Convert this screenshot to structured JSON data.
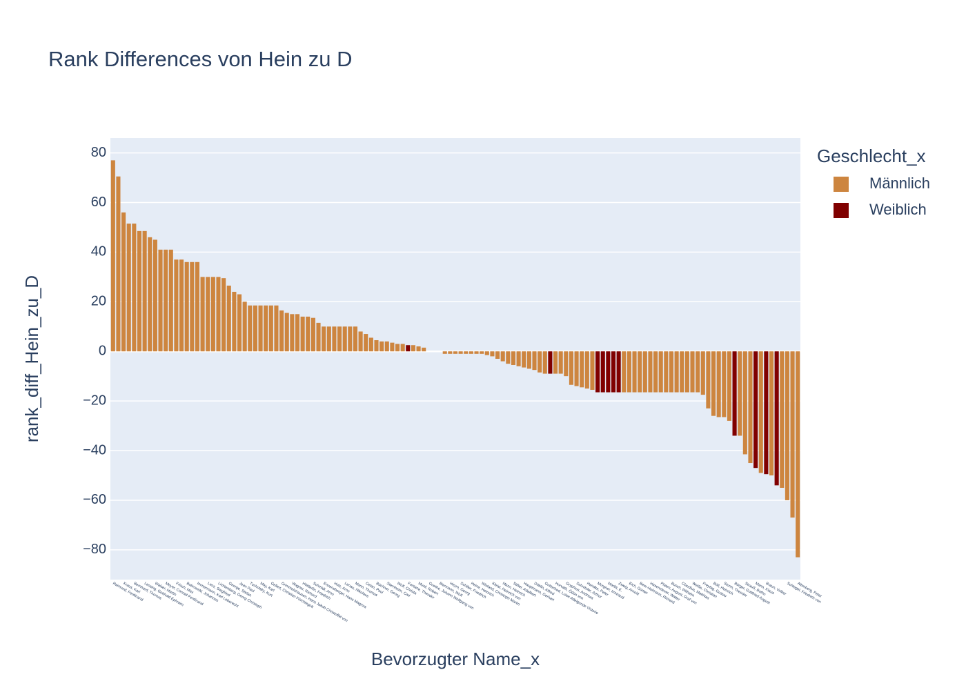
{
  "chart_data": {
    "type": "bar",
    "title": "Rank Differences von Hein zu D",
    "x_label": "Bevorzugter Name_x",
    "y_label": "rank_diff_Hein_zu_D",
    "legend_title": "Geschlecht_x",
    "legend_position": "right",
    "grid": true,
    "ylim": [
      -92,
      86
    ],
    "yticks": [
      {
        "value": -80,
        "label": "−80"
      },
      {
        "value": -60,
        "label": "−60"
      },
      {
        "value": -40,
        "label": "−40"
      },
      {
        "value": -20,
        "label": "−20"
      },
      0,
      20,
      40,
      60,
      80
    ],
    "categories": [
      "Raimund, Ferdinand",
      null,
      "Kraus, Karl",
      null,
      "Bernhard, Thomas",
      null,
      "Lessing, Gotthold Ephraim",
      null,
      "Walser, Martin",
      null,
      "Meyer, Conrad Ferdinand",
      null,
      "Frisch, Max",
      null,
      "Bobrowski, Johannes",
      null,
      "Immermann, Karl Leberecht",
      null,
      "Lenz, Siegfried",
      null,
      "Lichtenberg, Georg Christoph",
      null,
      "George, Stefan",
      null,
      "Jean Paul",
      null,
      "Tucholsky, Kurt",
      null,
      "May, Karl",
      null,
      "Gellert, Christian Fürchtegott",
      null,
      "Grimmelshausen, Hans Jakob Christoffel von",
      null,
      "Wagner, Richard",
      null,
      "Hölderlin, Friedrich",
      null,
      "Schmidt, Arno",
      null,
      "Enzensberger, Hans Magnus",
      null,
      "Holz, Arno",
      null,
      "Lenau, Nikolaus",
      null,
      "Mann, Thomas",
      null,
      "Celan, Paul",
      null,
      "Büchner, Georg",
      null,
      "Sternheim, Carl",
      null,
      "Wolf, Christa",
      null,
      "Fontane, Theodor",
      null,
      "Musil, Robert",
      null,
      "Goethe, Johann Wolfgang von",
      null,
      "Biermann, Wolf",
      null,
      "Heym, Georg",
      null,
      "Schiller, Friedrich",
      null,
      "Heine, Heinrich",
      null,
      "Wieland, Christoph Martin",
      null,
      "Kleist, Heinrich von",
      null,
      "Mann, Heinrich",
      null,
      "Stifter, Adalbert",
      null,
      "Hauptmann, Gerhart",
      null,
      "Döblin, Alfred",
      null,
      "Gottsched, Luise Adelgunde Victorie",
      null,
      "Horváth, Ödön von",
      null,
      "Gryphius, Andreas",
      null,
      "Schnitzler, Arthur",
      null,
      "Handke, Peter",
      null,
      "Morgner, Irmtraud",
      null,
      "Marlitt, E.",
      null,
      "Zweig, Arnold",
      null,
      "Eich, Günter",
      null,
      "Beer-Hofmann, Richard",
      null,
      "Hasenclever, Walter",
      null,
      "Platen, August, Graf von",
      null,
      "Busch, Wilhelm",
      null,
      "Claudius, Matthias",
      null,
      "Weiße, Christian",
      null,
      "Freytag, Gustav",
      null,
      "Böll, Heinrich",
      null,
      "Storm, Theodor",
      null,
      "Bürger, Gottfried August",
      null,
      "Strauß, Botho",
      null,
      "Mann, Klaus",
      null,
      "Braun, Volker",
      null,
      null,
      null,
      "Schlegel, Friedrich von",
      null,
      "Altenberg, Peter"
    ],
    "series": [
      {
        "name": "Männlich",
        "color": "#cd853f",
        "values": [
          77,
          70.5,
          56,
          51.5,
          51.5,
          48.5,
          48.5,
          46,
          45,
          41,
          41,
          41,
          37,
          37,
          36,
          36,
          36,
          30,
          30,
          30,
          30,
          29.5,
          26.5,
          24,
          23,
          20,
          18.5,
          18.5,
          18.5,
          18.5,
          18.5,
          18.5,
          16.5,
          15.5,
          15,
          15,
          14,
          14,
          13.5,
          11.5,
          10,
          10,
          10,
          10,
          10,
          10,
          10,
          8,
          7,
          5.5,
          4.5,
          4,
          4,
          3.5,
          3,
          3,
          null,
          2.5,
          2,
          1.5,
          0,
          0,
          0,
          -1,
          -1,
          -1,
          -1,
          -1,
          -1,
          -1,
          -1,
          -1.5,
          -2,
          -3,
          -4,
          -5,
          -5.5,
          -6,
          -6.5,
          -7,
          -7.5,
          -8.5,
          -9,
          null,
          -9,
          -9,
          -10,
          -13.5,
          -14,
          -14.5,
          -15,
          -15.5,
          null,
          null,
          null,
          null,
          null,
          -16.5,
          -16.5,
          -16.5,
          -16.5,
          -16.5,
          -16.5,
          -16.5,
          -16.5,
          -16.5,
          -16.5,
          -16.5,
          -16.5,
          -16.5,
          -16.5,
          -16.5,
          -17.5,
          -23,
          -26,
          -26.5,
          -26.5,
          -28,
          null,
          -34,
          -41.5,
          -45,
          null,
          -49,
          null,
          -50,
          null,
          -55,
          -60,
          -67,
          -83
        ]
      },
      {
        "name": "Weiblich",
        "color": "#800000",
        "values": [
          null,
          null,
          null,
          null,
          null,
          null,
          null,
          null,
          null,
          null,
          null,
          null,
          null,
          null,
          null,
          null,
          null,
          null,
          null,
          null,
          null,
          null,
          null,
          null,
          null,
          null,
          null,
          null,
          null,
          null,
          null,
          null,
          null,
          null,
          null,
          null,
          null,
          null,
          null,
          null,
          null,
          null,
          null,
          null,
          null,
          null,
          null,
          null,
          null,
          null,
          null,
          null,
          null,
          null,
          null,
          null,
          2.5,
          null,
          null,
          null,
          null,
          null,
          null,
          null,
          null,
          null,
          null,
          null,
          null,
          null,
          null,
          null,
          null,
          null,
          null,
          null,
          null,
          null,
          null,
          null,
          null,
          null,
          null,
          -9,
          null,
          null,
          null,
          null,
          null,
          null,
          null,
          null,
          -16.5,
          -16.5,
          -16.5,
          -16.5,
          -16.5,
          null,
          null,
          null,
          null,
          null,
          null,
          null,
          null,
          null,
          null,
          null,
          null,
          null,
          null,
          null,
          null,
          null,
          null,
          null,
          null,
          null,
          -34,
          null,
          null,
          null,
          -47,
          null,
          -49.5,
          null,
          -54,
          null,
          null,
          null,
          null
        ]
      }
    ]
  }
}
